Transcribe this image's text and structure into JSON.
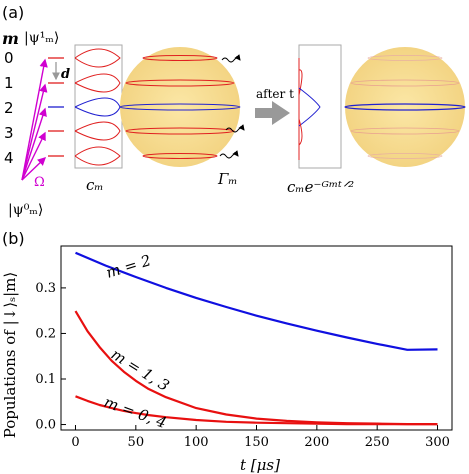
{
  "panel_a": {
    "label": "(a)",
    "m_header": "m",
    "m_values": [
      "0",
      "1",
      "2",
      "3",
      "4"
    ],
    "psi1": "|ψ¹ₘ⟩",
    "psi0": "|ψ⁰ₘ⟩",
    "d_label": "d",
    "omega_label": "Ω",
    "cm_label": "cₘ",
    "gamma_label": "Γₘ",
    "after_label": "after t",
    "decay_label": "cₘe⁻ᴳᵐᵗᐟ²",
    "colors": {
      "red": "#e02020",
      "blue": "#2020d0",
      "magenta": "#d000d0",
      "sphere": "#f6dc8e"
    }
  },
  "panel_b": {
    "label": "(b)"
  },
  "chart_data": {
    "type": "line",
    "xlabel": "t [μs]",
    "ylabel": "Populations of |↓⟩ₛ|m⟩",
    "xlim": [
      -12,
      312
    ],
    "ylim": [
      -0.012,
      0.392
    ],
    "xticks": [
      0,
      50,
      100,
      150,
      200,
      250,
      300
    ],
    "yticks": [
      0.0,
      0.1,
      0.2,
      0.3
    ],
    "series": [
      {
        "name": "m = 2",
        "color": "#1010e0",
        "x": [
          0,
          25,
          50,
          75,
          100,
          125,
          150,
          175,
          200,
          225,
          250,
          275,
          300
        ],
        "y": [
          0.377,
          0.349,
          0.324,
          0.3,
          0.278,
          0.258,
          0.239,
          0.222,
          0.206,
          0.191,
          0.177,
          0.164,
          0.165
        ]
      },
      {
        "name": "m = 1, 3",
        "color": "#e81010",
        "x": [
          0,
          10,
          20,
          30,
          40,
          50,
          60,
          75,
          100,
          125,
          150,
          175,
          200,
          225,
          250,
          275,
          300
        ],
        "y": [
          0.249,
          0.205,
          0.17,
          0.14,
          0.116,
          0.096,
          0.079,
          0.06,
          0.036,
          0.022,
          0.013,
          0.008,
          0.005,
          0.003,
          0.002,
          0.001,
          0.001
        ]
      },
      {
        "name": "m = 0, 4",
        "color": "#e81010",
        "x": [
          0,
          10,
          20,
          30,
          40,
          50,
          60,
          75,
          100,
          125,
          150,
          175,
          200,
          225,
          250,
          275,
          300
        ],
        "y": [
          0.062,
          0.052,
          0.043,
          0.036,
          0.03,
          0.025,
          0.021,
          0.016,
          0.01,
          0.006,
          0.004,
          0.003,
          0.002,
          0.001,
          0.001,
          0.001,
          0.001
        ]
      }
    ],
    "annotations": [
      "m = 2",
      "m = 1, 3",
      "m = 0, 4"
    ]
  }
}
